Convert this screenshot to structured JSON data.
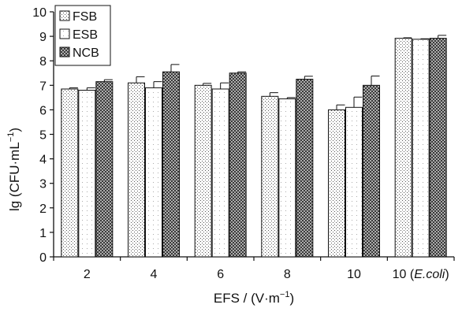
{
  "chart_data": {
    "type": "bar",
    "xlabel_main": "EFS / (V·m",
    "xlabel_sup": "−1",
    "xlabel_end": ")",
    "ylabel_main": "lg (CFU·mL",
    "ylabel_sup": "−1",
    "ylabel_end": ")",
    "ylim": [
      0,
      10
    ],
    "yticks": [
      0,
      1,
      2,
      3,
      4,
      5,
      6,
      7,
      8,
      9,
      10
    ],
    "categories": [
      {
        "pre": "2",
        "italic": "",
        "post": ""
      },
      {
        "pre": "4",
        "italic": "",
        "post": ""
      },
      {
        "pre": "6",
        "italic": "",
        "post": ""
      },
      {
        "pre": "8",
        "italic": "",
        "post": ""
      },
      {
        "pre": "10",
        "italic": "",
        "post": ""
      },
      {
        "pre": "10 (",
        "italic": "E.coli",
        "post": ")"
      }
    ],
    "series": [
      {
        "name": "FSB",
        "pattern": "dots",
        "values": [
          6.85,
          7.1,
          7.0,
          6.55,
          6.0,
          8.92
        ],
        "errors": [
          0.05,
          0.25,
          0.08,
          0.15,
          0.2,
          0.02
        ]
      },
      {
        "name": "ESB",
        "pattern": "blank",
        "values": [
          6.8,
          6.9,
          6.85,
          6.45,
          6.1,
          8.88
        ],
        "errors": [
          0.1,
          0.25,
          0.25,
          0.05,
          0.42,
          0.02
        ]
      },
      {
        "name": "NCB",
        "pattern": "crosshatch",
        "values": [
          7.15,
          7.55,
          7.5,
          7.25,
          7.0,
          8.92
        ],
        "errors": [
          0.08,
          0.3,
          0.05,
          0.12,
          0.38,
          0.12
        ]
      }
    ],
    "legend": "top-left",
    "grid": false
  }
}
